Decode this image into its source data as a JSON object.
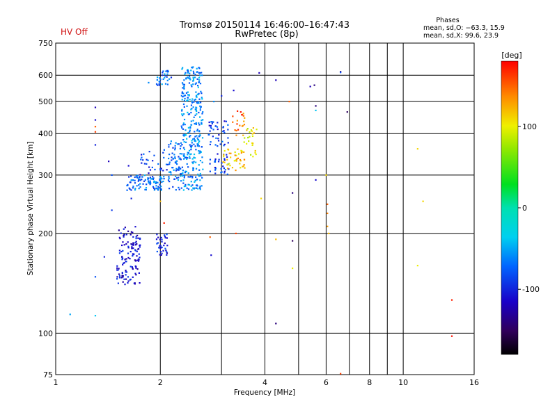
{
  "header": {
    "title_line1": "Tromsø 20150114 16:46:00–16:47:43",
    "title_line2": "RwPretec (8p)",
    "hv_status": "HV Off",
    "phases_heading": "Phases",
    "phases_o": "mean, sd,O: −63.3, 15.9",
    "phases_x": "mean, sd,X:  99.6, 23.9"
  },
  "chart_data": {
    "type": "scatter",
    "title": "Tromsø 20150114 16:46:00–16:47:43",
    "subtitle": "RwPretec (8p)",
    "xlabel": "Frequency [MHz]",
    "ylabel": "Stationary phase Virtual Height [km]",
    "x_scale": "log",
    "y_scale": "log",
    "xlim": [
      1,
      16
    ],
    "ylim": [
      75,
      750
    ],
    "x_ticks": [
      1,
      2,
      4,
      6,
      8,
      10,
      16
    ],
    "y_ticks": [
      75,
      100,
      200,
      300,
      400,
      500,
      600,
      750
    ],
    "grid": true,
    "colorbar": {
      "label": "[deg]",
      "range": [
        -180,
        180
      ],
      "ticks": [
        -100,
        0,
        100
      ]
    },
    "clusters": [
      {
        "fmin": 1.5,
        "fmax": 1.75,
        "hmin": 140,
        "hmax": 210,
        "phase": -110,
        "n": 130
      },
      {
        "fmin": 1.95,
        "fmax": 2.1,
        "hmin": 170,
        "hmax": 200,
        "phase": -100,
        "n": 35
      },
      {
        "fmin": 1.6,
        "fmax": 2.05,
        "hmin": 270,
        "hmax": 300,
        "phase": -70,
        "n": 95
      },
      {
        "fmin": 1.75,
        "fmax": 2.15,
        "hmin": 300,
        "hmax": 360,
        "phase": -90,
        "n": 30
      },
      {
        "fmin": 2.1,
        "fmax": 2.3,
        "hmin": 270,
        "hmax": 380,
        "phase": -70,
        "n": 70
      },
      {
        "fmin": 2.3,
        "fmax": 2.65,
        "hmin": 270,
        "hmax": 640,
        "phase": -60,
        "n": 330
      },
      {
        "fmin": 1.95,
        "fmax": 2.15,
        "hmin": 560,
        "hmax": 620,
        "phase": -70,
        "n": 30
      },
      {
        "fmin": 2.75,
        "fmax": 3.15,
        "hmin": 300,
        "hmax": 440,
        "phase": -90,
        "n": 75
      },
      {
        "fmin": 3.0,
        "fmax": 3.5,
        "hmin": 310,
        "hmax": 360,
        "phase": 115,
        "n": 45
      },
      {
        "fmin": 3.2,
        "fmax": 3.5,
        "hmin": 380,
        "hmax": 470,
        "phase": 150,
        "n": 20
      },
      {
        "fmin": 3.45,
        "fmax": 3.8,
        "hmin": 340,
        "hmax": 420,
        "phase": 100,
        "n": 25
      }
    ],
    "points": [
      {
        "f": 1.3,
        "h": 480,
        "phase": -120
      },
      {
        "f": 1.3,
        "h": 440,
        "phase": -110
      },
      {
        "f": 1.3,
        "h": 420,
        "phase": 150
      },
      {
        "f": 1.3,
        "h": 405,
        "phase": 160
      },
      {
        "f": 1.3,
        "h": 370,
        "phase": -100
      },
      {
        "f": 1.42,
        "h": 330,
        "phase": -120
      },
      {
        "f": 1.45,
        "h": 300,
        "phase": -80
      },
      {
        "f": 1.45,
        "h": 235,
        "phase": -90
      },
      {
        "f": 1.38,
        "h": 170,
        "phase": -100
      },
      {
        "f": 1.3,
        "h": 148,
        "phase": -80
      },
      {
        "f": 1.1,
        "h": 114,
        "phase": -50
      },
      {
        "f": 1.3,
        "h": 113,
        "phase": -40
      },
      {
        "f": 1.62,
        "h": 320,
        "phase": -110
      },
      {
        "f": 1.65,
        "h": 255,
        "phase": -100
      },
      {
        "f": 1.85,
        "h": 570,
        "phase": -60
      },
      {
        "f": 2.05,
        "h": 215,
        "phase": 170
      },
      {
        "f": 2.0,
        "h": 250,
        "phase": 120
      },
      {
        "f": 2.78,
        "h": 195,
        "phase": 150
      },
      {
        "f": 2.8,
        "h": 172,
        "phase": -110
      },
      {
        "f": 2.85,
        "h": 500,
        "phase": -60
      },
      {
        "f": 3.0,
        "h": 520,
        "phase": -100
      },
      {
        "f": 3.25,
        "h": 540,
        "phase": -110
      },
      {
        "f": 3.3,
        "h": 200,
        "phase": 160
      },
      {
        "f": 3.85,
        "h": 610,
        "phase": -120
      },
      {
        "f": 3.9,
        "h": 255,
        "phase": 110
      },
      {
        "f": 4.3,
        "h": 580,
        "phase": -120
      },
      {
        "f": 4.3,
        "h": 192,
        "phase": 120
      },
      {
        "f": 4.3,
        "h": 107,
        "phase": -140
      },
      {
        "f": 4.7,
        "h": 500,
        "phase": 150
      },
      {
        "f": 4.8,
        "h": 265,
        "phase": -140
      },
      {
        "f": 4.8,
        "h": 190,
        "phase": -150
      },
      {
        "f": 4.8,
        "h": 157,
        "phase": 100
      },
      {
        "f": 5.4,
        "h": 555,
        "phase": -120
      },
      {
        "f": 5.55,
        "h": 560,
        "phase": -140
      },
      {
        "f": 5.6,
        "h": 485,
        "phase": -140
      },
      {
        "f": 5.6,
        "h": 470,
        "phase": -40
      },
      {
        "f": 5.6,
        "h": 290,
        "phase": -110
      },
      {
        "f": 6.0,
        "h": 300,
        "phase": 110
      },
      {
        "f": 6.05,
        "h": 245,
        "phase": 150
      },
      {
        "f": 6.05,
        "h": 230,
        "phase": 140
      },
      {
        "f": 6.05,
        "h": 210,
        "phase": 130
      },
      {
        "f": 6.1,
        "h": 200,
        "phase": 120
      },
      {
        "f": 6.6,
        "h": 615,
        "phase": -140
      },
      {
        "f": 6.6,
        "h": 612,
        "phase": -80
      },
      {
        "f": 6.9,
        "h": 465,
        "phase": -150
      },
      {
        "f": 11.0,
        "h": 360,
        "phase": 110
      },
      {
        "f": 11.4,
        "h": 250,
        "phase": 110
      },
      {
        "f": 11.0,
        "h": 160,
        "phase": 100
      },
      {
        "f": 13.8,
        "h": 126,
        "phase": 170
      },
      {
        "f": 13.8,
        "h": 98,
        "phase": 175
      },
      {
        "f": 6.6,
        "h": 75.5,
        "phase": 160
      }
    ]
  }
}
